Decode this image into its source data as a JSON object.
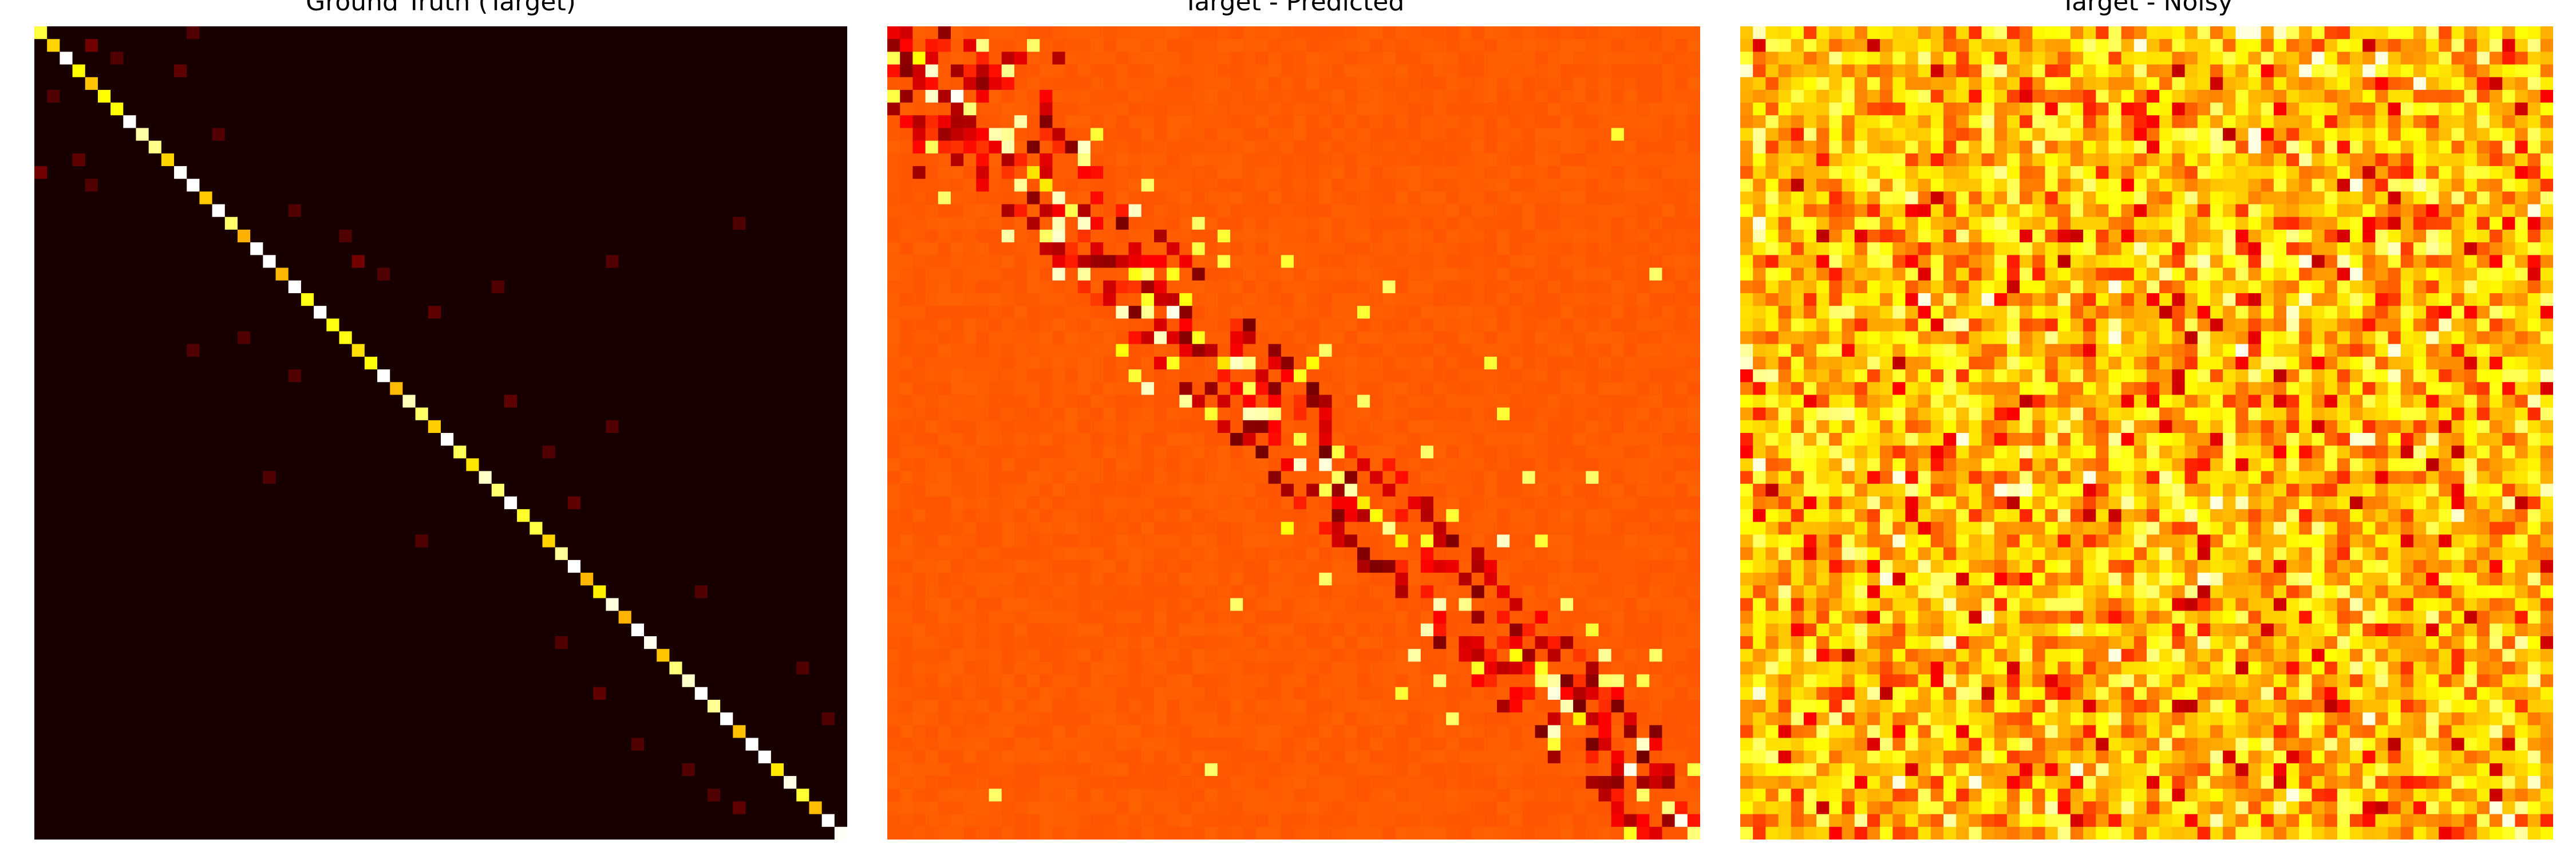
{
  "chart_data": [
    {
      "type": "heatmap",
      "title": "Ground Truth (Target)",
      "colormap": "hot",
      "grid": false,
      "axes_visible": false,
      "size": [
        64,
        64
      ],
      "pattern": "near-zero background with a bright main diagonal and sparse faint off-diagonal entries",
      "diagonal_level": 0.9,
      "background_level": 0.02,
      "offdiag_cells": [
        [
          0,
          12,
          0.1
        ],
        [
          1,
          4,
          0.15
        ],
        [
          2,
          6,
          0.1
        ],
        [
          3,
          11,
          0.12
        ],
        [
          5,
          1,
          0.1
        ],
        [
          8,
          14,
          0.1
        ],
        [
          10,
          3,
          0.12
        ],
        [
          11,
          0,
          0.15
        ],
        [
          12,
          4,
          0.1
        ],
        [
          14,
          20,
          0.1
        ],
        [
          16,
          24,
          0.1
        ],
        [
          18,
          25,
          0.15
        ],
        [
          19,
          27,
          0.1
        ],
        [
          20,
          36,
          0.1
        ],
        [
          22,
          31,
          0.12
        ],
        [
          24,
          16,
          0.1
        ],
        [
          27,
          20,
          0.1
        ],
        [
          29,
          37,
          0.12
        ],
        [
          31,
          45,
          0.1
        ],
        [
          33,
          40,
          0.1
        ],
        [
          35,
          18,
          0.1
        ],
        [
          37,
          42,
          0.12
        ],
        [
          40,
          30,
          0.1
        ],
        [
          44,
          52,
          0.1
        ],
        [
          48,
          41,
          0.1
        ],
        [
          50,
          60,
          0.1
        ],
        [
          52,
          44,
          0.12
        ],
        [
          54,
          62,
          0.1
        ],
        [
          56,
          47,
          0.1
        ],
        [
          58,
          51,
          0.1
        ],
        [
          60,
          53,
          0.1
        ],
        [
          61,
          55,
          0.12
        ],
        [
          18,
          45,
          0.1
        ],
        [
          25,
          12,
          0.1
        ],
        [
          15,
          55,
          0.1
        ]
      ]
    },
    {
      "type": "heatmap",
      "title": "Target - Predicted",
      "colormap": "hot",
      "grid": false,
      "axes_visible": false,
      "size": [
        64,
        64
      ],
      "pattern": "uniform mid-red background with dark cells along the diagonal band and scattered bright yellow cells",
      "background_level": 0.5,
      "band_width": 5,
      "highlight_cells": [
        [
          1,
          11,
          0.85
        ],
        [
          13,
          4,
          0.85
        ],
        [
          8,
          16,
          0.8
        ],
        [
          12,
          20,
          0.85
        ],
        [
          15,
          24,
          0.85
        ],
        [
          16,
          26,
          0.8
        ],
        [
          18,
          31,
          0.8
        ],
        [
          20,
          39,
          0.85
        ],
        [
          22,
          37,
          0.8
        ],
        [
          25,
          34,
          0.85
        ],
        [
          27,
          19,
          0.8
        ],
        [
          29,
          37,
          0.85
        ],
        [
          30,
          48,
          0.8
        ],
        [
          33,
          42,
          0.85
        ],
        [
          35,
          50,
          0.85
        ],
        [
          38,
          44,
          0.8
        ],
        [
          40,
          51,
          0.8
        ],
        [
          43,
          34,
          0.85
        ],
        [
          45,
          27,
          0.85
        ],
        [
          47,
          55,
          0.8
        ],
        [
          49,
          60,
          0.85
        ],
        [
          52,
          40,
          0.8
        ],
        [
          54,
          44,
          0.85
        ],
        [
          56,
          52,
          0.8
        ],
        [
          58,
          25,
          0.85
        ],
        [
          60,
          8,
          0.85
        ],
        [
          19,
          60,
          0.85
        ],
        [
          26,
          47,
          0.8
        ],
        [
          35,
          55,
          0.85
        ],
        [
          8,
          57,
          0.8
        ]
      ]
    },
    {
      "type": "heatmap",
      "title": "Target - Noisy",
      "colormap": "hot",
      "grid": false,
      "axes_visible": false,
      "size": [
        64,
        64
      ],
      "pattern": "dense random noise with values spanning dark red, red, orange, yellow and occasional white",
      "value_range": [
        0.3,
        1.0
      ]
    }
  ]
}
